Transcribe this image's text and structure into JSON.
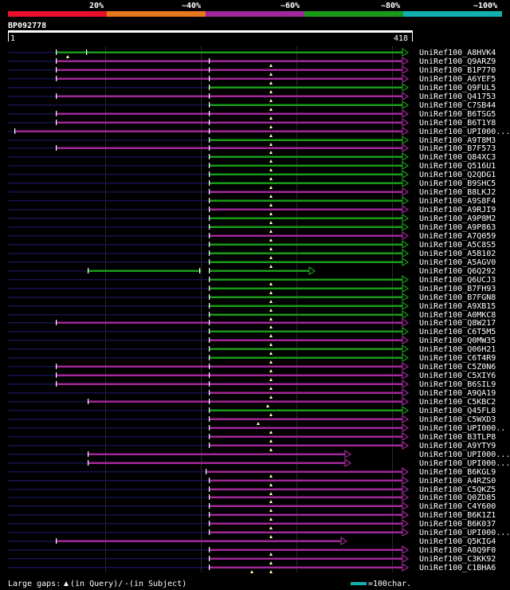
{
  "header": {
    "scale_labels": [
      "20%",
      "~40%",
      "~60%",
      "~80%",
      "~100%"
    ],
    "scale_colors": [
      "#e8102a",
      "#e8781e",
      "#a02898",
      "#1a9a1a",
      "#13b0b0"
    ],
    "query_id": "BP092778",
    "ruler_start": "1",
    "ruler_end": "418"
  },
  "legend": {
    "large_gaps_label": "Large gaps:",
    "in_query": "(in Query)/",
    "dash": "-",
    "in_subject": " (in Subject)",
    "scale_text": "=100char."
  },
  "colors": {
    "green": "#1a9a1a",
    "magenta": "#a02898",
    "navy": "#141450",
    "accent": "#13b0b0"
  },
  "hits": [
    {
      "id": "UniRef100_A8HVK4",
      "color": "green",
      "start": 70,
      "end": 512,
      "arrow": true,
      "insert_marks": [
        85
      ],
      "dividers": [
        70,
        108
      ]
    },
    {
      "id": "UniRef100_Q9ARZ9",
      "color": "magenta",
      "start": 70,
      "end": 512,
      "arrow": true,
      "insert_marks": [
        340
      ],
      "dividers": [
        70,
        262
      ]
    },
    {
      "id": "UniRef100_B1P770",
      "color": "magenta",
      "start": 70,
      "end": 512,
      "arrow": true,
      "insert_marks": [
        340
      ],
      "dividers": [
        70,
        262
      ]
    },
    {
      "id": "UniRef100_A6YEF5",
      "color": "magenta",
      "start": 70,
      "end": 512,
      "arrow": true,
      "insert_marks": [
        340
      ],
      "dividers": [
        70,
        262
      ]
    },
    {
      "id": "UniRef100_Q9FUL5",
      "color": "green",
      "start": 262,
      "end": 512,
      "arrow": true,
      "insert_marks": [
        340
      ],
      "dividers": [
        262
      ]
    },
    {
      "id": "UniRef100_Q41753",
      "color": "magenta",
      "start": 70,
      "end": 512,
      "arrow": true,
      "insert_marks": [
        340
      ],
      "dividers": [
        70,
        262
      ]
    },
    {
      "id": "UniRef100_C7SB44",
      "color": "green",
      "start": 262,
      "end": 512,
      "arrow": true,
      "insert_marks": [
        340
      ],
      "dividers": [
        262
      ]
    },
    {
      "id": "UniRef100_B6TSG5",
      "color": "magenta",
      "start": 70,
      "end": 512,
      "arrow": true,
      "insert_marks": [
        340
      ],
      "dividers": [
        70,
        262
      ]
    },
    {
      "id": "UniRef100_B6T1Y8",
      "color": "magenta",
      "start": 70,
      "end": 512,
      "arrow": true,
      "insert_marks": [
        340
      ],
      "dividers": [
        70,
        262
      ]
    },
    {
      "id": "UniRef100_UPI000...",
      "color": "magenta",
      "start": 18,
      "end": 512,
      "arrow": true,
      "insert_marks": [
        340
      ],
      "dividers": [
        18,
        262
      ]
    },
    {
      "id": "UniRef100_A9T8M3",
      "color": "green",
      "start": 262,
      "end": 512,
      "arrow": true,
      "insert_marks": [
        340
      ],
      "dividers": [
        262
      ]
    },
    {
      "id": "UniRef100_B7F573",
      "color": "magenta",
      "start": 70,
      "end": 512,
      "arrow": true,
      "insert_marks": [
        340
      ],
      "dividers": [
        70,
        262
      ]
    },
    {
      "id": "UniRef100_Q84XC3",
      "color": "green",
      "start": 262,
      "end": 512,
      "arrow": true,
      "insert_marks": [
        340
      ],
      "dividers": [
        262
      ]
    },
    {
      "id": "UniRef100_Q516U1",
      "color": "green",
      "start": 262,
      "end": 512,
      "arrow": true,
      "insert_marks": [
        340
      ],
      "dividers": [
        262
      ]
    },
    {
      "id": "UniRef100_Q2QDG1",
      "color": "green",
      "start": 262,
      "end": 512,
      "arrow": true,
      "insert_marks": [
        340
      ],
      "dividers": [
        262
      ]
    },
    {
      "id": "UniRef100_B9SHC5",
      "color": "green",
      "start": 262,
      "end": 512,
      "arrow": true,
      "insert_marks": [
        340
      ],
      "dividers": [
        262
      ]
    },
    {
      "id": "UniRef100_B8LKJ2",
      "color": "magenta",
      "start": 262,
      "end": 512,
      "arrow": true,
      "insert_marks": [
        340
      ],
      "dividers": [
        262
      ]
    },
    {
      "id": "UniRef100_A9S8F4",
      "color": "green",
      "start": 262,
      "end": 512,
      "arrow": true,
      "insert_marks": [
        340
      ],
      "dividers": [
        262
      ]
    },
    {
      "id": "UniRef100_A9RJI9",
      "color": "magenta",
      "start": 262,
      "end": 512,
      "arrow": true,
      "insert_marks": [
        340
      ],
      "dividers": [
        262
      ]
    },
    {
      "id": "UniRef100_A9P8M2",
      "color": "green",
      "start": 262,
      "end": 512,
      "arrow": true,
      "insert_marks": [
        340
      ],
      "dividers": [
        262
      ]
    },
    {
      "id": "UniRef100_A9P863",
      "color": "green",
      "start": 262,
      "end": 512,
      "arrow": true,
      "insert_marks": [
        340
      ],
      "dividers": [
        262
      ]
    },
    {
      "id": "UniRef100_A7Q059",
      "color": "magenta",
      "start": 262,
      "end": 512,
      "arrow": true,
      "insert_marks": [
        340
      ],
      "dividers": [
        262
      ]
    },
    {
      "id": "UniRef100_A5C8S5",
      "color": "green",
      "start": 262,
      "end": 512,
      "arrow": true,
      "insert_marks": [
        340
      ],
      "dividers": [
        262
      ]
    },
    {
      "id": "UniRef100_A5B102",
      "color": "green",
      "start": 262,
      "end": 512,
      "arrow": true,
      "insert_marks": [
        340
      ],
      "dividers": [
        262
      ]
    },
    {
      "id": "UniRef100_A5AGV0",
      "color": "green",
      "start": 262,
      "end": 512,
      "arrow": true,
      "insert_marks": [
        340
      ],
      "dividers": [
        262
      ]
    },
    {
      "id": "UniRef100_Q6Q292",
      "color": "green",
      "start": 110,
      "end": 395,
      "arrow": true,
      "insert_marks": [],
      "dividers": [
        110,
        250,
        262
      ],
      "gap": [
        252,
        262
      ]
    },
    {
      "id": "UniRef100_Q6UCJ3",
      "color": "green",
      "start": 262,
      "end": 512,
      "arrow": true,
      "insert_marks": [
        340
      ],
      "dividers": [
        262
      ]
    },
    {
      "id": "UniRef100_B7FH93",
      "color": "green",
      "start": 262,
      "end": 512,
      "arrow": true,
      "insert_marks": [
        340
      ],
      "dividers": [
        262
      ]
    },
    {
      "id": "UniRef100_B7FGN8",
      "color": "green",
      "start": 262,
      "end": 512,
      "arrow": true,
      "insert_marks": [
        340
      ],
      "dividers": [
        262
      ]
    },
    {
      "id": "UniRef100_A9XB15",
      "color": "green",
      "start": 262,
      "end": 512,
      "arrow": true,
      "insert_marks": [
        340
      ],
      "dividers": [
        262
      ]
    },
    {
      "id": "UniRef100_A0MKC8",
      "color": "green",
      "start": 262,
      "end": 512,
      "arrow": true,
      "insert_marks": [
        340
      ],
      "dividers": [
        262
      ]
    },
    {
      "id": "UniRef100_Q8W217",
      "color": "magenta",
      "start": 70,
      "end": 512,
      "arrow": true,
      "insert_marks": [
        340
      ],
      "dividers": [
        70,
        262
      ]
    },
    {
      "id": "UniRef100_C6T5M5",
      "color": "green",
      "start": 262,
      "end": 512,
      "arrow": true,
      "insert_marks": [
        340
      ],
      "dividers": [
        262
      ]
    },
    {
      "id": "UniRef100_Q0MW35",
      "color": "magenta",
      "start": 262,
      "end": 512,
      "arrow": true,
      "insert_marks": [
        340
      ],
      "dividers": [
        262
      ]
    },
    {
      "id": "UniRef100_Q06H21",
      "color": "green",
      "start": 262,
      "end": 512,
      "arrow": true,
      "insert_marks": [
        340
      ],
      "dividers": [
        262
      ]
    },
    {
      "id": "UniRef100_C6T4R9",
      "color": "green",
      "start": 262,
      "end": 512,
      "arrow": true,
      "insert_marks": [
        340
      ],
      "dividers": [
        262
      ]
    },
    {
      "id": "UniRef100_C5Z0N6",
      "color": "magenta",
      "start": 70,
      "end": 512,
      "arrow": true,
      "insert_marks": [
        340
      ],
      "dividers": [
        70,
        262
      ]
    },
    {
      "id": "UniRef100_C5XIY6",
      "color": "magenta",
      "start": 70,
      "end": 512,
      "arrow": true,
      "insert_marks": [
        340
      ],
      "dividers": [
        70,
        262
      ]
    },
    {
      "id": "UniRef100_B6SIL9",
      "color": "magenta",
      "start": 70,
      "end": 512,
      "arrow": true,
      "insert_marks": [
        340
      ],
      "dividers": [
        70,
        262
      ]
    },
    {
      "id": "UniRef100_A9QA19",
      "color": "magenta",
      "start": 262,
      "end": 512,
      "arrow": true,
      "insert_marks": [
        340
      ],
      "dividers": [
        262
      ]
    },
    {
      "id": "UniRef100_C5KBC2",
      "color": "magenta",
      "start": 110,
      "end": 512,
      "arrow": true,
      "insert_marks": [
        336
      ],
      "dividers": [
        110,
        262
      ]
    },
    {
      "id": "UniRef100_Q45FL8",
      "color": "green",
      "start": 262,
      "end": 512,
      "arrow": true,
      "insert_marks": [
        340
      ],
      "dividers": [
        262
      ]
    },
    {
      "id": "UniRef100_C5WXD3",
      "color": "magenta",
      "start": 262,
      "end": 512,
      "arrow": true,
      "insert_marks": [
        324
      ],
      "dividers": [
        262
      ]
    },
    {
      "id": "UniRef100_UPI000..",
      "color": "magenta",
      "start": 262,
      "end": 512,
      "arrow": true,
      "insert_marks": [
        340
      ],
      "dividers": [
        262
      ]
    },
    {
      "id": "UniRef100_B3TLP8",
      "color": "magenta",
      "start": 262,
      "end": 512,
      "arrow": true,
      "insert_marks": [
        340
      ],
      "dividers": [
        262
      ]
    },
    {
      "id": "UniRef100_A9YTY9",
      "color": "magenta",
      "start": 262,
      "end": 512,
      "arrow": true,
      "insert_marks": [
        340
      ],
      "dividers": [
        262
      ]
    },
    {
      "id": "UniRef100_UPI000...",
      "color": "magenta",
      "start": 110,
      "end": 440,
      "arrow": true,
      "insert_marks": [],
      "dividers": [
        110
      ]
    },
    {
      "id": "UniRef100_UPI000...",
      "color": "magenta",
      "start": 110,
      "end": 440,
      "arrow": true,
      "insert_marks": [],
      "dividers": [
        110
      ]
    },
    {
      "id": "UniRef100_B6KGL9",
      "color": "magenta",
      "start": 258,
      "end": 512,
      "arrow": true,
      "insert_marks": [
        340
      ],
      "dividers": [
        258
      ]
    },
    {
      "id": "UniRef100_A4RZS0",
      "color": "magenta",
      "start": 262,
      "end": 512,
      "arrow": true,
      "insert_marks": [
        340
      ],
      "dividers": [
        262
      ]
    },
    {
      "id": "UniRef100_C5QKZ5",
      "color": "magenta",
      "start": 262,
      "end": 512,
      "arrow": true,
      "insert_marks": [
        340
      ],
      "dividers": [
        262
      ]
    },
    {
      "id": "UniRef100_Q0ZD85",
      "color": "magenta",
      "start": 262,
      "end": 512,
      "arrow": true,
      "insert_marks": [
        340
      ],
      "dividers": [
        262
      ]
    },
    {
      "id": "UniRef100_C4Y600",
      "color": "magenta",
      "start": 262,
      "end": 512,
      "arrow": true,
      "insert_marks": [
        340
      ],
      "dividers": [
        262
      ]
    },
    {
      "id": "UniRef100_B6K1Z1",
      "color": "magenta",
      "start": 262,
      "end": 512,
      "arrow": true,
      "insert_marks": [
        340
      ],
      "dividers": [
        262
      ]
    },
    {
      "id": "UniRef100_B6K037",
      "color": "magenta",
      "start": 262,
      "end": 512,
      "arrow": true,
      "insert_marks": [
        340
      ],
      "dividers": [
        262
      ]
    },
    {
      "id": "UniRef100_UPI000...",
      "color": "magenta",
      "start": 262,
      "end": 512,
      "arrow": true,
      "insert_marks": [
        340
      ],
      "dividers": [
        262
      ]
    },
    {
      "id": "UniRef100_Q5KIG4",
      "color": "magenta",
      "start": 70,
      "end": 435,
      "arrow": true,
      "insert_marks": [],
      "dividers": [
        70
      ]
    },
    {
      "id": "UniRef100_A8Q9F0",
      "color": "magenta",
      "start": 262,
      "end": 512,
      "arrow": true,
      "insert_marks": [
        340
      ],
      "dividers": [
        262
      ]
    },
    {
      "id": "UniRef100_C3KK92",
      "color": "magenta",
      "start": 262,
      "end": 512,
      "arrow": true,
      "insert_marks": [
        340
      ],
      "dividers": [
        262
      ]
    },
    {
      "id": "UniRef100_C1BHA6",
      "color": "magenta",
      "start": 262,
      "end": 512,
      "arrow": true,
      "insert_marks": [
        316,
        340
      ],
      "dividers": [
        262
      ]
    }
  ]
}
